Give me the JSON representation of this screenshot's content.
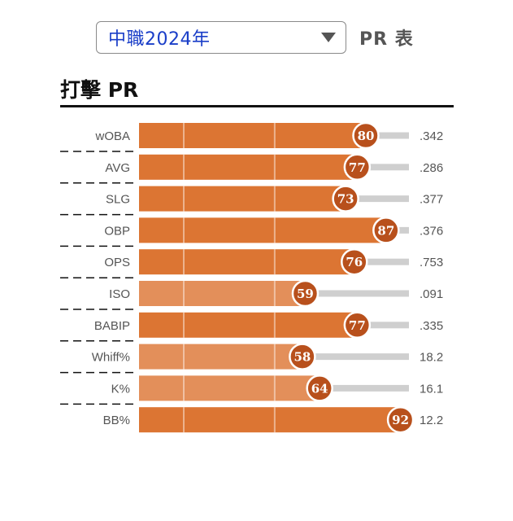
{
  "header": {
    "league_select": {
      "value": "中職2024年"
    },
    "pr_table_label": "PR 表"
  },
  "section": {
    "title": "打擊 PR"
  },
  "colors": {
    "bar_high": "#dc7533",
    "bar_low": "#e38f5a",
    "badge": "#b8501c",
    "track": "#cfcfcf"
  },
  "chart_data": {
    "type": "bar",
    "orientation": "horizontal",
    "title": "打擊 PR",
    "xlim": [
      0,
      100
    ],
    "categories": [
      "wOBA",
      "AVG",
      "SLG",
      "OBP",
      "OPS",
      "ISO",
      "BABIP",
      "Whiff%",
      "K%",
      "BB%"
    ],
    "series": [
      {
        "values": [
          80,
          77,
          73,
          87,
          76,
          59,
          77,
          58,
          64,
          92
        ]
      }
    ],
    "stat_values": [
      ".342",
      ".286",
      ".377",
      ".376",
      ".753",
      ".091",
      ".335",
      "18.2",
      "16.1",
      "12.2"
    ]
  }
}
